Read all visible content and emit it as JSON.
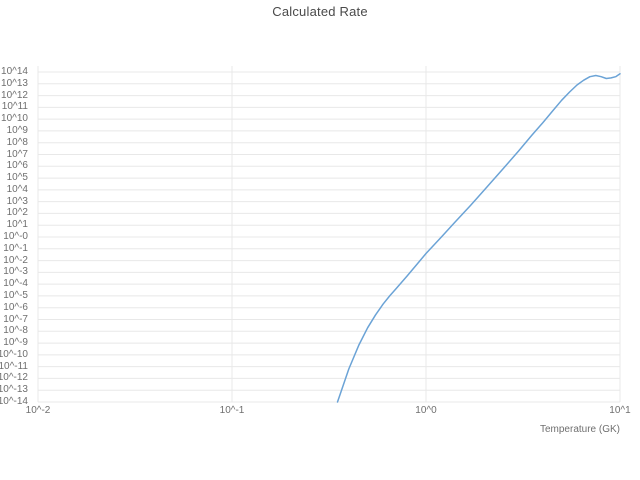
{
  "page": {
    "background": "#ffffff"
  },
  "chart_data": {
    "type": "line",
    "title": "Calculated Rate",
    "xlabel": "Temperature (GK)",
    "ylabel": "",
    "x_scale": "log",
    "y_scale": "log",
    "xlim_exponents": [
      -2,
      1
    ],
    "ylim_exponents": [
      -14,
      14
    ],
    "grid": true,
    "legend": "none",
    "x_tick_exponents": [
      -2,
      -1,
      0,
      1
    ],
    "x_tick_labels": [
      "10^-2",
      "10^-1",
      "10^0",
      "10^1"
    ],
    "y_tick_exponents": [
      14,
      13,
      12,
      11,
      10,
      9,
      8,
      7,
      6,
      5,
      4,
      3,
      2,
      1,
      0,
      -1,
      -2,
      -3,
      -4,
      -5,
      -6,
      -7,
      -8,
      -9,
      -10,
      -11,
      -12,
      -13,
      -14
    ],
    "y_tick_labels": [
      "10^14",
      "10^13",
      "10^12",
      "10^11",
      "10^10",
      "10^9",
      "10^8",
      "10^7",
      "10^6",
      "10^5",
      "10^4",
      "10^3",
      "10^2",
      "10^1",
      "10^-0",
      "10^-1",
      "10^-2",
      "10^-3",
      "10^-4",
      "10^-5",
      "10^-6",
      "10^-7",
      "10^-8",
      "10^-9",
      "10^-10",
      "10^-11",
      "10^-12",
      "10^-13",
      "10^-14"
    ],
    "colors": {
      "line": "#6ba3d6",
      "grid": "#e8e8e8",
      "tick_text": "#6f6f6f",
      "title_text": "#4a4a4a"
    },
    "series": [
      {
        "name": "calculated-rate",
        "x_temperature_gk": [
          0.35,
          0.4,
          0.45,
          0.5,
          0.55,
          0.6,
          0.65,
          0.7,
          0.8,
          0.9,
          1.0,
          1.2,
          1.4,
          1.7,
          2.0,
          2.5,
          3.0,
          3.5,
          4.0,
          4.5,
          5.0,
          5.5,
          6.0,
          6.5,
          7.0,
          7.5,
          8.0,
          8.5,
          9.0,
          9.5,
          10.0
        ],
        "log10_rate": [
          -14.0,
          -11.2,
          -9.2,
          -7.7,
          -6.6,
          -5.7,
          -5.0,
          -4.4,
          -3.3,
          -2.3,
          -1.4,
          0.0,
          1.2,
          2.7,
          4.0,
          5.8,
          7.3,
          8.6,
          9.7,
          10.7,
          11.6,
          12.3,
          12.9,
          13.3,
          13.6,
          13.7,
          13.6,
          13.45,
          13.5,
          13.6,
          13.85
        ]
      }
    ]
  }
}
